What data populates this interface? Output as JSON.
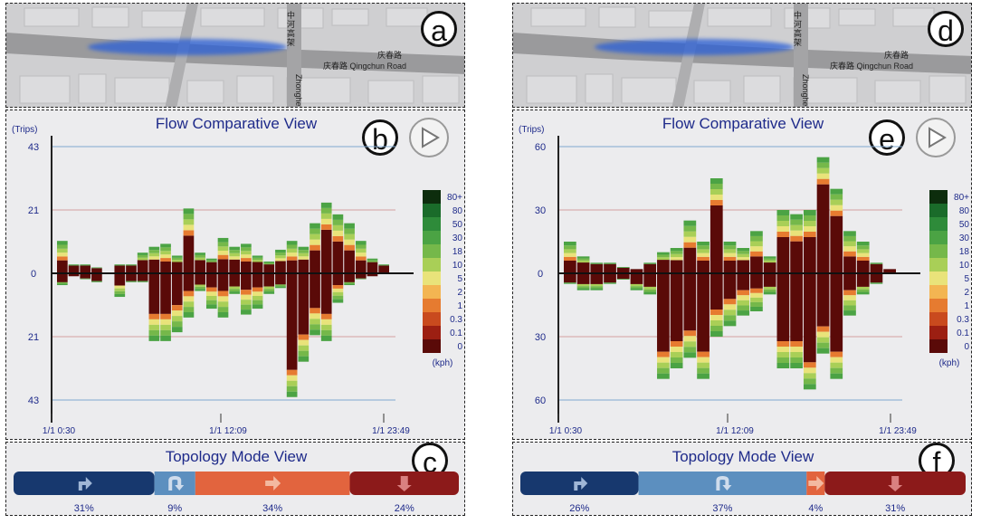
{
  "panels": [
    {
      "id": "left",
      "labels": {
        "map": "a",
        "flow": "b",
        "topo": "c"
      },
      "map": {
        "road_main_cn": "庆春路",
        "road_main_en": "庆春路 Qingchun Road",
        "road_cross_cn": "中河高架",
        "road_cross_en": "Zhonghe"
      },
      "flow_title": "Flow Comparative View",
      "topo_title": "Topology Mode View",
      "chart_data": {
        "type": "bar",
        "title": "Flow Comparative View",
        "ylabel": "(Trips)",
        "yticks_top": [
          "43",
          "21",
          "0"
        ],
        "yticks_bottom": [
          "21",
          "43"
        ],
        "ymax": 43,
        "xticks": [
          "1/1 0:30",
          "1/1 12:09",
          "1/1 23:49"
        ],
        "up": [
          11,
          3,
          3,
          2,
          0,
          3,
          3,
          7,
          9,
          10,
          6,
          22,
          7,
          5,
          12,
          9,
          10,
          6,
          4,
          8,
          11,
          9,
          17,
          24,
          20,
          17,
          11,
          5,
          3
        ],
        "down": [
          4,
          1,
          2,
          3,
          0,
          8,
          3,
          3,
          23,
          23,
          20,
          15,
          6,
          12,
          15,
          7,
          14,
          12,
          7,
          5,
          42,
          30,
          21,
          23,
          10,
          4,
          2,
          1,
          0
        ],
        "speed_legend": [
          "80+",
          "80",
          "50",
          "30",
          "18",
          "10",
          "5",
          "2",
          "1",
          "0.3",
          "0.1",
          "0"
        ],
        "speed_unit": "(kph)"
      },
      "topology": [
        {
          "icon": "turn-right-icon",
          "pct": "31%",
          "value": 31,
          "color": "#17386e"
        },
        {
          "icon": "u-turn-icon",
          "pct": "9%",
          "value": 9,
          "color": "#5c8fbf"
        },
        {
          "icon": "straight-arrow-icon",
          "pct": "34%",
          "value": 34,
          "color": "#e2643e"
        },
        {
          "icon": "turn-left-icon",
          "pct": "24%",
          "value": 24,
          "color": "#8c1a1a"
        }
      ]
    },
    {
      "id": "right",
      "labels": {
        "map": "d",
        "flow": "e",
        "topo": "f"
      },
      "map": {
        "road_main_cn": "庆春路",
        "road_main_en": "庆春路 Qingchun Road",
        "road_cross_cn": "中河高架",
        "road_cross_en": "Zhonghe"
      },
      "flow_title": "Flow Comparative View",
      "topo_title": "Topology Mode View",
      "chart_data": {
        "type": "bar",
        "title": "Flow Comparative View",
        "ylabel": "(Trips)",
        "yticks_top": [
          "60",
          "30",
          "0"
        ],
        "yticks_bottom": [
          "30",
          "60"
        ],
        "ymax": 60,
        "xticks": [
          "1/1 0:30",
          "1/1 12:09",
          "1/1 23:49"
        ],
        "up": [
          15,
          8,
          5,
          5,
          3,
          2,
          5,
          10,
          12,
          25,
          15,
          45,
          15,
          12,
          20,
          8,
          30,
          28,
          30,
          55,
          40,
          20,
          15,
          5,
          2
        ],
        "down": [
          5,
          8,
          8,
          5,
          3,
          8,
          10,
          50,
          45,
          40,
          50,
          30,
          25,
          20,
          18,
          10,
          45,
          45,
          55,
          38,
          50,
          20,
          10,
          5,
          0
        ],
        "speed_legend": [
          "80+",
          "80",
          "50",
          "30",
          "18",
          "10",
          "5",
          "2",
          "1",
          "0.3",
          "0.1",
          "0"
        ],
        "speed_unit": "(kph)"
      },
      "topology": [
        {
          "icon": "turn-right-icon",
          "pct": "26%",
          "value": 26,
          "color": "#17386e"
        },
        {
          "icon": "u-turn-icon",
          "pct": "37%",
          "value": 37,
          "color": "#5c8fbf"
        },
        {
          "icon": "straight-arrow-icon",
          "pct": "4%",
          "value": 4,
          "color": "#e2643e"
        },
        {
          "icon": "turn-left-icon",
          "pct": "31%",
          "value": 31,
          "color": "#8c1a1a"
        }
      ]
    }
  ],
  "speed_colors": [
    "#0d2d0d",
    "#1a6b2a",
    "#2e8b3a",
    "#4ba344",
    "#75b84a",
    "#a9cf57",
    "#e9e37a",
    "#f3b552",
    "#e67b30",
    "#c94a1e",
    "#9c1f12",
    "#5a0a08"
  ]
}
